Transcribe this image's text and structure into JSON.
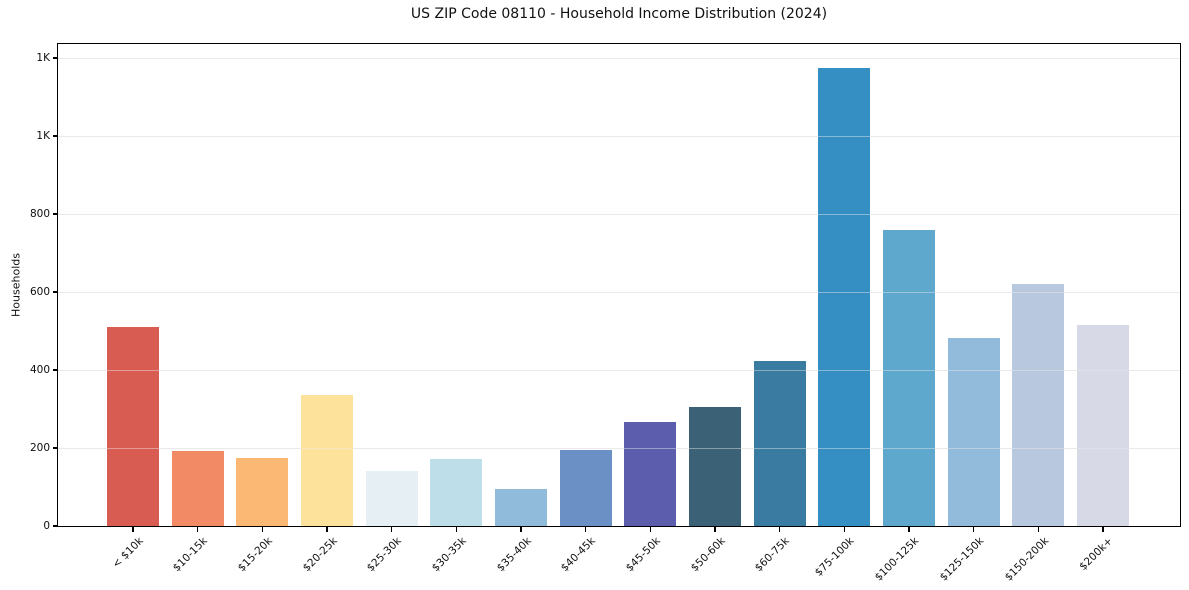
{
  "chart_data": {
    "type": "bar",
    "title": "US ZIP Code 08110 - Household Income Distribution (2024)",
    "xlabel": "",
    "ylabel": "Households",
    "categories": [
      "< $10k",
      "$10-15k",
      "$15-20k",
      "$20-25k",
      "$25-30k",
      "$30-35k",
      "$35-40k",
      "$40-45k",
      "$45-50k",
      "$50-60k",
      "$60-75k",
      "$75-100k",
      "$100-125k",
      "$125-150k",
      "$150-200k",
      "$200k+"
    ],
    "values": [
      510,
      192,
      174,
      336,
      141,
      172,
      94,
      196,
      267,
      306,
      423,
      1175,
      759,
      483,
      620,
      516
    ],
    "bar_colors": [
      "#d95c52",
      "#f28a66",
      "#fab874",
      "#fde29c",
      "#e5eff4",
      "#bedfea",
      "#90bbda",
      "#6b90c6",
      "#5c5ead",
      "#3a6175",
      "#3a7ba2",
      "#368fc3",
      "#5da8cc",
      "#92badb",
      "#b8c8de",
      "#d7d9e6"
    ],
    "ylim": [
      0,
      1236
    ],
    "yticks": [
      {
        "value": 0,
        "label": "0"
      },
      {
        "value": 200,
        "label": "200"
      },
      {
        "value": 400,
        "label": "400"
      },
      {
        "value": 600,
        "label": "600"
      },
      {
        "value": 800,
        "label": "800"
      },
      {
        "value": 1000,
        "label": "1K"
      },
      {
        "value": 1200,
        "label": "1K"
      }
    ],
    "grid": "horizontal",
    "legend": "none",
    "background_color": "#ffffff",
    "axis_color": "#000000",
    "grid_color": "#e7e7e7"
  }
}
